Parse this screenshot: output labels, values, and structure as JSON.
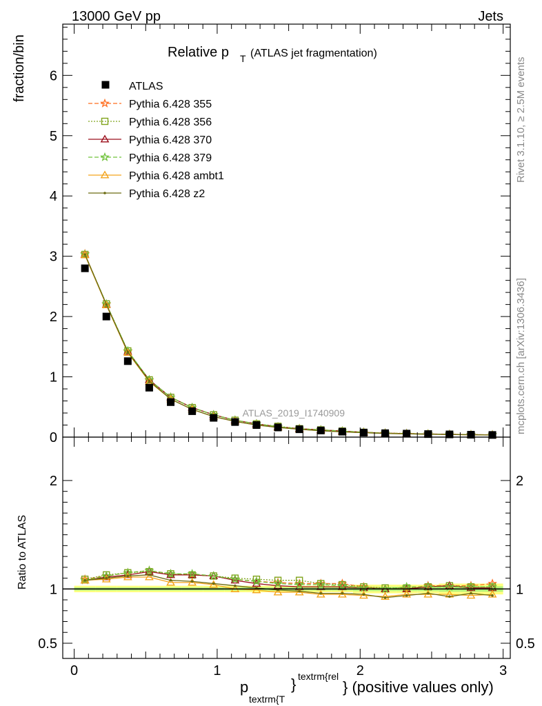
{
  "header": {
    "left": "13000 GeV pp",
    "right": "Jets"
  },
  "side_text": {
    "rivet": "Rivet 3.1.10, ≥ 2.5M events",
    "mcplots": "mcplots.cern.ch [arXiv:1306.3436]"
  },
  "watermark": "ATLAS_2019_I1740909",
  "colors": {
    "atlas": "#000000",
    "p355": "#ff6d1f",
    "p356": "#7fa31b",
    "p370": "#9b0d1a",
    "p379": "#6fc23a",
    "ambt1": "#f3a31b",
    "z2": "#6b6b12",
    "band_outer": "#ffff80",
    "band_inner": "#b3f07a"
  },
  "chart_data": [
    {
      "type": "line",
      "title_main": "Relative p",
      "title_sub": "T",
      "title_rest": "(ATLAS jet fragmentation)",
      "ylabel": "fraction/bin",
      "xlim": [
        -0.08,
        3.05
      ],
      "ylim": [
        0,
        6.85
      ],
      "yticks": [
        0,
        1,
        2,
        3,
        4,
        5,
        6
      ],
      "ytick_labels": [
        "0",
        "1",
        "2",
        "3",
        "4",
        "5",
        "6"
      ],
      "x": [
        0.075,
        0.225,
        0.375,
        0.525,
        0.675,
        0.825,
        0.975,
        1.125,
        1.275,
        1.425,
        1.575,
        1.725,
        1.875,
        2.025,
        2.175,
        2.325,
        2.475,
        2.625,
        2.775,
        2.925
      ],
      "data": {
        "name": "ATLAS",
        "values": [
          2.8,
          2.0,
          1.26,
          0.82,
          0.58,
          0.43,
          0.32,
          0.25,
          0.2,
          0.16,
          0.13,
          0.11,
          0.09,
          0.075,
          0.065,
          0.058,
          0.05,
          0.045,
          0.04,
          0.036
        ]
      },
      "series": [
        {
          "name": "Pythia 6.428 355",
          "marker": "star",
          "dash": "6,3",
          "color_key": "p355",
          "values": [
            3.04,
            2.2,
            1.42,
            0.94,
            0.66,
            0.49,
            0.37,
            0.28,
            0.22,
            0.17,
            0.14,
            0.12,
            0.1,
            0.08,
            0.067,
            0.06,
            0.052,
            0.047,
            0.042,
            0.038
          ]
        },
        {
          "name": "Pythia 6.428 356",
          "marker": "square",
          "dash": "2,2",
          "color_key": "p356",
          "values": [
            3.03,
            2.21,
            1.43,
            0.95,
            0.66,
            0.49,
            0.37,
            0.28,
            0.22,
            0.18,
            0.14,
            0.12,
            0.1,
            0.08,
            0.067,
            0.06,
            0.052,
            0.047,
            0.041,
            0.037
          ]
        },
        {
          "name": "Pythia 6.428 370",
          "marker": "triangle",
          "dash": "",
          "color_key": "p370",
          "values": [
            3.03,
            2.2,
            1.42,
            0.95,
            0.66,
            0.49,
            0.37,
            0.28,
            0.22,
            0.17,
            0.14,
            0.12,
            0.1,
            0.08,
            0.066,
            0.059,
            0.052,
            0.047,
            0.041,
            0.037
          ]
        },
        {
          "name": "Pythia 6.428 379",
          "marker": "star",
          "dash": "6,3",
          "color_key": "p379",
          "values": [
            3.03,
            2.21,
            1.43,
            0.95,
            0.66,
            0.49,
            0.37,
            0.28,
            0.22,
            0.17,
            0.14,
            0.12,
            0.1,
            0.08,
            0.066,
            0.059,
            0.052,
            0.046,
            0.041,
            0.037
          ]
        },
        {
          "name": "Pythia 6.428 ambt1",
          "marker": "triangle",
          "dash": "",
          "color_key": "ambt1",
          "values": [
            3.02,
            2.19,
            1.4,
            0.92,
            0.63,
            0.46,
            0.34,
            0.26,
            0.2,
            0.16,
            0.13,
            0.105,
            0.087,
            0.073,
            0.061,
            0.055,
            0.048,
            0.043,
            0.038,
            0.034
          ]
        },
        {
          "name": "Pythia 6.428 z2",
          "marker": "dot",
          "dash": "",
          "color_key": "z2",
          "values": [
            3.03,
            2.2,
            1.41,
            0.93,
            0.63,
            0.46,
            0.34,
            0.26,
            0.2,
            0.16,
            0.13,
            0.105,
            0.087,
            0.073,
            0.06,
            0.055,
            0.048,
            0.043,
            0.039,
            0.034
          ]
        }
      ]
    },
    {
      "type": "line",
      "ylabel": "Ratio to ATLAS",
      "xlabel_p": "p",
      "xlabel_sub": "textrm{T",
      "xlabel_sup": "textrm{rel",
      "xlabel_rest": "} (positive values only)",
      "xlim": [
        -0.08,
        3.05
      ],
      "ylim": [
        0.36,
        2.4
      ],
      "yticks": [
        0.5,
        1,
        2
      ],
      "ytick_labels": [
        "0.5",
        "1",
        "2"
      ],
      "xticks": [
        0,
        1,
        2,
        3
      ],
      "xtick_labels": [
        "0",
        "1",
        "2",
        "3"
      ],
      "x": [
        0.075,
        0.225,
        0.375,
        0.525,
        0.675,
        0.825,
        0.975,
        1.125,
        1.275,
        1.425,
        1.575,
        1.725,
        1.875,
        2.025,
        2.175,
        2.325,
        2.475,
        2.625,
        2.775,
        2.925
      ],
      "band_outer": [
        0.03,
        0.03,
        0.03,
        0.03,
        0.03,
        0.03,
        0.03,
        0.03,
        0.03,
        0.03,
        0.03,
        0.03,
        0.03,
        0.04,
        0.04,
        0.04,
        0.04,
        0.05,
        0.05,
        0.05
      ],
      "band_inner": [
        0.015,
        0.015,
        0.015,
        0.015,
        0.015,
        0.015,
        0.015,
        0.015,
        0.015,
        0.015,
        0.015,
        0.015,
        0.015,
        0.02,
        0.02,
        0.02,
        0.02,
        0.025,
        0.025,
        0.025
      ],
      "series": [
        {
          "name": "Pythia 6.428 355",
          "marker": "star",
          "dash": "6,3",
          "color_key": "p355",
          "values": [
            1.09,
            1.12,
            1.15,
            1.17,
            1.14,
            1.13,
            1.12,
            1.09,
            1.07,
            1.06,
            1.05,
            1.05,
            1.05,
            1.02,
            1.0,
            1.01,
            1.03,
            1.03,
            1.03,
            1.05
          ]
        },
        {
          "name": "Pythia 6.428 356",
          "marker": "square",
          "dash": "2,2",
          "color_key": "p356",
          "values": [
            1.09,
            1.13,
            1.15,
            1.16,
            1.14,
            1.13,
            1.12,
            1.1,
            1.09,
            1.08,
            1.08,
            1.05,
            1.04,
            1.02,
            1.01,
            1.01,
            1.02,
            1.03,
            1.02,
            1.02
          ]
        },
        {
          "name": "Pythia 6.428 370",
          "marker": "triangle",
          "dash": "",
          "color_key": "p370",
          "values": [
            1.08,
            1.11,
            1.13,
            1.16,
            1.13,
            1.13,
            1.12,
            1.08,
            1.05,
            1.03,
            1.02,
            1.02,
            1.02,
            1.01,
            1.0,
            1.0,
            1.02,
            1.03,
            1.01,
            1.01
          ]
        },
        {
          "name": "Pythia 6.428 379",
          "marker": "star",
          "dash": "6,3",
          "color_key": "p379",
          "values": [
            1.08,
            1.12,
            1.15,
            1.17,
            1.14,
            1.14,
            1.12,
            1.09,
            1.07,
            1.05,
            1.04,
            1.04,
            1.03,
            1.01,
            1.0,
            1.02,
            1.02,
            1.02,
            1.02,
            1.02
          ]
        },
        {
          "name": "Pythia 6.428 ambt1",
          "marker": "triangle",
          "dash": "",
          "color_key": "ambt1",
          "values": [
            1.08,
            1.09,
            1.11,
            1.11,
            1.06,
            1.06,
            1.04,
            1.0,
            0.99,
            0.97,
            0.97,
            0.95,
            0.95,
            0.94,
            0.93,
            0.95,
            0.95,
            0.95,
            0.94,
            0.95
          ]
        },
        {
          "name": "Pythia 6.428 z2",
          "marker": "dot",
          "dash": "",
          "color_key": "z2",
          "values": [
            1.08,
            1.1,
            1.12,
            1.13,
            1.08,
            1.07,
            1.05,
            1.03,
            1.01,
            0.99,
            0.98,
            0.96,
            0.96,
            0.95,
            0.92,
            0.94,
            0.96,
            0.93,
            0.96,
            0.94
          ]
        }
      ]
    }
  ]
}
